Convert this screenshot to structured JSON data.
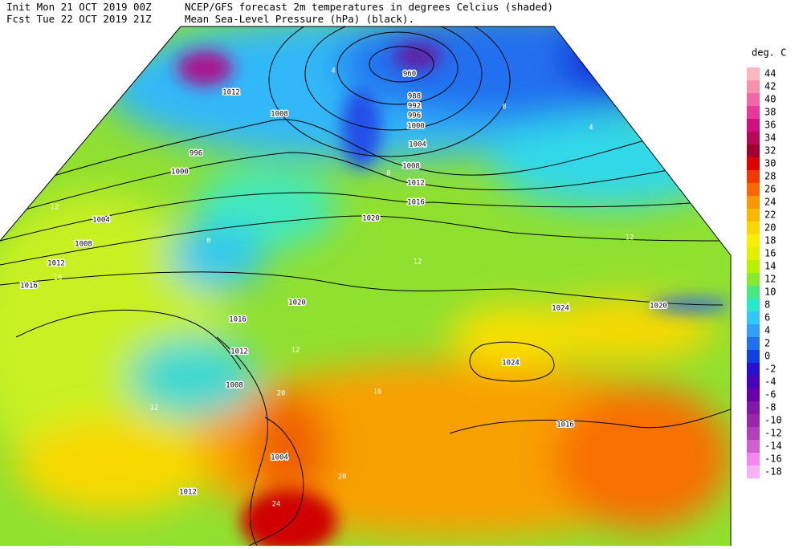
{
  "header": {
    "init": "Init  Mon 21 OCT 2019 00Z",
    "fcst": "Fcst Tue 22 OCT 2019 21Z",
    "title1": "NCEP/GFS forecast 2m temperatures in degrees Celcius (shaded)",
    "title2": "Mean Sea-Level Pressure (hPa) (black)."
  },
  "legend": {
    "title": "deg. C",
    "labels": [
      44,
      42,
      40,
      38,
      36,
      34,
      32,
      30,
      28,
      26,
      24,
      22,
      20,
      18,
      16,
      14,
      12,
      10,
      8,
      6,
      4,
      2,
      0,
      -2,
      -4,
      -6,
      -8,
      -10,
      -12,
      -14,
      -16,
      -18
    ],
    "colors": [
      "#f8b8c0",
      "#f890b0",
      "#f068a8",
      "#e83898",
      "#d01080",
      "#b80858",
      "#a00030",
      "#e00000",
      "#f03800",
      "#f86800",
      "#f89800",
      "#f8b800",
      "#f8d800",
      "#f8f000",
      "#e0f000",
      "#b8f000",
      "#88e830",
      "#48e880",
      "#28e8c8",
      "#30c8f8",
      "#30a0f8",
      "#2070f0",
      "#1040e0",
      "#2810d0",
      "#4800b8",
      "#6800a8",
      "#8018a8",
      "#9828a8",
      "#b040b8",
      "#d060d0",
      "#f088f0",
      "#f8b0f8"
    ]
  },
  "pressure_labels": [
    960,
    988,
    992,
    996,
    1000,
    1004,
    1008,
    1012,
    1016,
    1020,
    1024,
    996,
    1000,
    1004,
    1008,
    1012,
    1016,
    1008,
    1012,
    1016,
    1020,
    1024,
    1016,
    1020,
    1008,
    1004,
    1012,
    1012
  ],
  "temperature_labels": [
    4,
    8,
    12,
    16,
    20,
    12,
    12,
    8,
    4,
    12,
    16,
    20,
    24,
    12,
    8
  ]
}
